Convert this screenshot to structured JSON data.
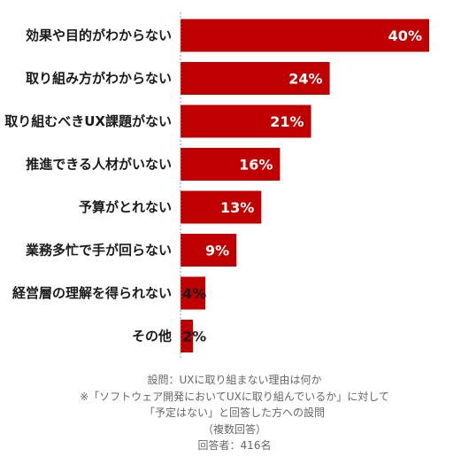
{
  "chart_data": {
    "type": "bar",
    "orientation": "horizontal",
    "categories": [
      "効果や目的がわからない",
      "取り組み方がわからない",
      "取り組むべきUX課題がない",
      "推進できる人材がいない",
      "予算がとれない",
      "業務多忙で手が回らない",
      "経営層の理解を得られない",
      "その他"
    ],
    "values": [
      40,
      24,
      21,
      16,
      13,
      9,
      4,
      2
    ],
    "value_labels": [
      "40%",
      "24%",
      "21%",
      "16%",
      "13%",
      "9%",
      "4%",
      "2%"
    ],
    "xlim": [
      0,
      41
    ],
    "bar_color": "#c00000",
    "grid": false,
    "legend": "none"
  },
  "footnote": {
    "lines": [
      "設問：UXに取り組まない理由は何か",
      "※「ソフトウェア開発においてUXに取り組んでいるか」に対して",
      "「予定はない」と回答した方への設問",
      "（複数回答）",
      "回答者：416名"
    ]
  }
}
